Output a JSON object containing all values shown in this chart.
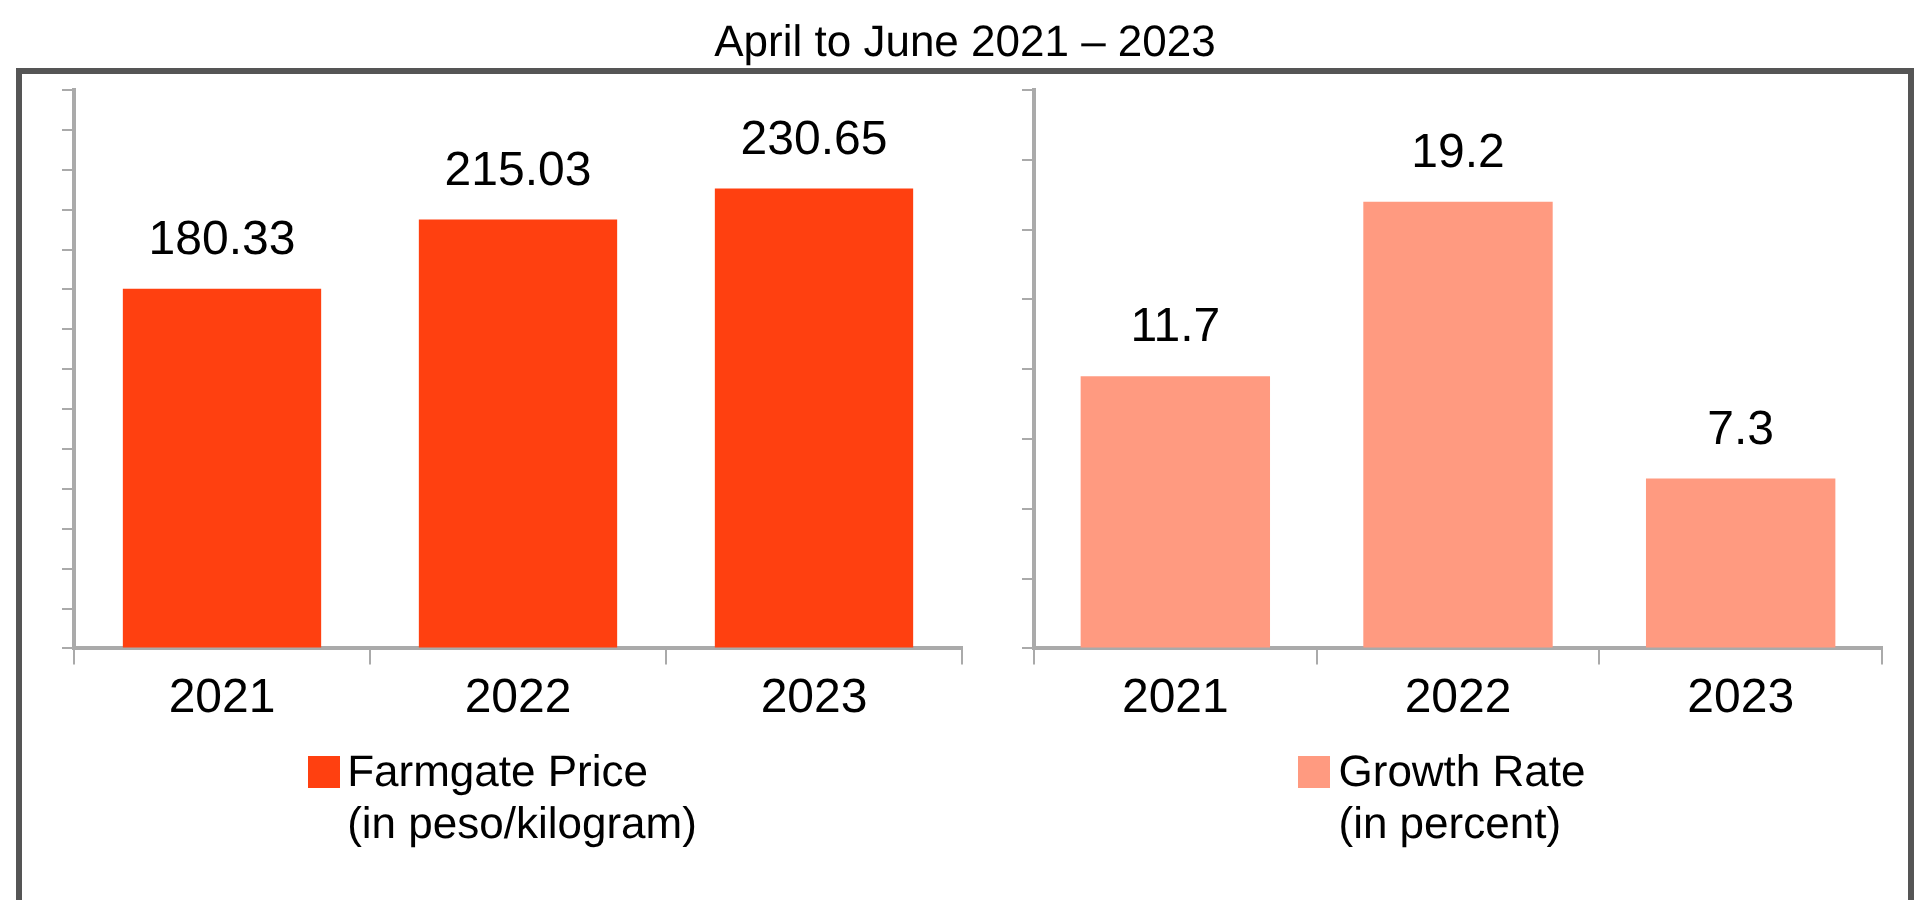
{
  "chart_data": [
    {
      "type": "bar",
      "title": "April to June 2021 – 2023",
      "categories": [
        "2021",
        "2022",
        "2023"
      ],
      "series": [
        {
          "name": "Farmgate Price\n(in peso/kilogram)",
          "color": "#ff4010",
          "values": [
            180.33,
            215.03,
            230.65
          ]
        }
      ],
      "ylim": [
        0,
        280
      ],
      "yticks": [
        {
          "value": 0,
          "label": null
        },
        {
          "value": 20,
          "label": null
        },
        {
          "value": 40,
          "label": null
        },
        {
          "value": 60,
          "label": null
        },
        {
          "value": 80,
          "label": null
        },
        {
          "value": 100,
          "label": null
        },
        {
          "value": 120,
          "label": null
        },
        {
          "value": 140,
          "label": null
        },
        {
          "value": 160,
          "label": null
        },
        {
          "value": 180,
          "label": null
        },
        {
          "value": 200,
          "label": null
        },
        {
          "value": 220,
          "label": null
        },
        {
          "value": 240,
          "label": null
        },
        {
          "value": 260,
          "label": null
        },
        {
          "value": 280,
          "label": null
        }
      ],
      "tick_labels": "x",
      "data_labels": true,
      "legend": "bottom",
      "grid": false
    },
    {
      "type": "bar",
      "categories": [
        "2021",
        "2022",
        "2023"
      ],
      "series": [
        {
          "name": "Growth Rate\n(in percent)",
          "color": "#ff9a80",
          "values": [
            11.7,
            19.2,
            7.3
          ]
        }
      ],
      "ylim": [
        0,
        24
      ],
      "yticks": [
        {
          "value": 0,
          "label": null
        },
        {
          "value": 3,
          "label": null
        },
        {
          "value": 6,
          "label": null
        },
        {
          "value": 9,
          "label": null
        },
        {
          "value": 12,
          "label": null
        },
        {
          "value": 15,
          "label": null
        },
        {
          "value": 18,
          "label": null
        },
        {
          "value": 21,
          "label": null
        },
        {
          "value": 24,
          "label": null
        }
      ],
      "tick_labels": "x",
      "data_labels": true,
      "legend": "bottom",
      "grid": false
    }
  ]
}
